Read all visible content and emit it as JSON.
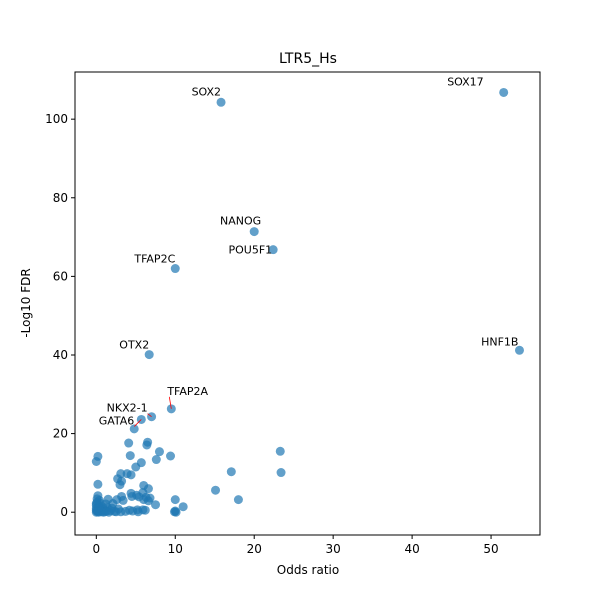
{
  "chart_data": {
    "type": "scatter",
    "title": "LTR5_Hs",
    "xlabel": "Odds ratio",
    "ylabel": "-Log10 FDR",
    "xlim": [
      -2.7,
      56.2
    ],
    "ylim": [
      -5.8,
      112
    ],
    "xticks": [
      "0",
      "10",
      "20",
      "30",
      "40",
      "50"
    ],
    "xtick_values": [
      0,
      10,
      20,
      30,
      40,
      50
    ],
    "yticks": [
      "0",
      "20",
      "40",
      "60",
      "80",
      "100"
    ],
    "ytick_values": [
      0,
      20,
      40,
      60,
      80,
      100
    ],
    "grid": false,
    "marker_color": "#1f77b4",
    "label_line_color": "#ff0000",
    "labeled_points": [
      {
        "label": "SOX17",
        "x": 51.6,
        "y": 106.8
      },
      {
        "label": "SOX2",
        "x": 15.8,
        "y": 104.3
      },
      {
        "label": "NANOG",
        "x": 20.0,
        "y": 71.4
      },
      {
        "label": "POU5F1",
        "x": 22.4,
        "y": 66.8
      },
      {
        "label": "TFAP2C",
        "x": 10.0,
        "y": 62.0
      },
      {
        "label": "HNF1B",
        "x": 53.6,
        "y": 41.2
      },
      {
        "label": "OTX2",
        "x": 6.7,
        "y": 40.1
      },
      {
        "label": "TFAP2A",
        "x": 9.5,
        "y": 26.3
      },
      {
        "label": "NKX2-1",
        "x": 7.0,
        "y": 24.3
      },
      {
        "label": "GATA6",
        "x": 5.7,
        "y": 23.6
      }
    ],
    "points": [
      [
        4.8,
        21.2
      ],
      [
        6.5,
        17.8
      ],
      [
        6.4,
        17.1
      ],
      [
        4.1,
        17.6
      ],
      [
        8.0,
        15.4
      ],
      [
        9.4,
        14.3
      ],
      [
        4.3,
        14.4
      ],
      [
        7.6,
        13.4
      ],
      [
        23.3,
        15.5
      ],
      [
        23.4,
        10.1
      ],
      [
        17.1,
        10.3
      ],
      [
        0.2,
        14.2
      ],
      [
        0.0,
        12.9
      ],
      [
        5.7,
        12.6
      ],
      [
        5.0,
        11.5
      ],
      [
        3.1,
        9.8
      ],
      [
        3.9,
        9.8
      ],
      [
        4.4,
        9.5
      ],
      [
        2.7,
        8.5
      ],
      [
        3.2,
        7.9
      ],
      [
        3.0,
        7.0
      ],
      [
        0.2,
        7.1
      ],
      [
        6.0,
        6.8
      ],
      [
        6.6,
        6.0
      ],
      [
        15.1,
        5.6
      ],
      [
        5.9,
        5.0
      ],
      [
        4.4,
        4.8
      ],
      [
        5.1,
        4.3
      ],
      [
        4.5,
        4.0
      ],
      [
        3.2,
        4.0
      ],
      [
        6.3,
        3.8
      ],
      [
        6.8,
        3.6
      ],
      [
        5.4,
        3.9
      ],
      [
        0.2,
        4.2
      ],
      [
        0.1,
        3.4
      ],
      [
        0.4,
        3.0
      ],
      [
        1.5,
        3.3
      ],
      [
        2.6,
        3.2
      ],
      [
        3.4,
        3.0
      ],
      [
        6.0,
        3.2
      ],
      [
        6.6,
        2.9
      ],
      [
        10.0,
        3.2
      ],
      [
        18.0,
        3.2
      ],
      [
        0.1,
        2.6
      ],
      [
        0.5,
        2.3
      ],
      [
        1.2,
        2.1
      ],
      [
        2.1,
        2.2
      ],
      [
        7.5,
        1.9
      ],
      [
        11.0,
        1.4
      ],
      [
        0.0,
        1.8
      ],
      [
        0.3,
        1.6
      ],
      [
        0.8,
        1.4
      ],
      [
        1.4,
        1.2
      ],
      [
        2.0,
        1.0
      ],
      [
        2.8,
        0.8
      ],
      [
        4.2,
        0.5
      ],
      [
        5.2,
        0.6
      ],
      [
        5.9,
        0.6
      ],
      [
        6.2,
        0.5
      ],
      [
        0.0,
        1.0
      ],
      [
        0.2,
        0.8
      ],
      [
        0.5,
        0.6
      ],
      [
        0.7,
        0.9
      ],
      [
        1.0,
        0.5
      ],
      [
        1.3,
        0.3
      ],
      [
        1.8,
        0.4
      ],
      [
        2.3,
        0.2
      ],
      [
        3.1,
        0.1
      ],
      [
        3.7,
        0.2
      ],
      [
        4.6,
        0.3
      ],
      [
        5.3,
        0.1
      ],
      [
        9.9,
        0.1
      ],
      [
        10.1,
        0.0
      ],
      [
        10.0,
        0.3
      ],
      [
        0.0,
        0.0
      ],
      [
        0.1,
        0.2
      ],
      [
        0.3,
        0.0
      ],
      [
        0.4,
        0.3
      ],
      [
        0.6,
        0.1
      ],
      [
        0.9,
        0.0
      ],
      [
        1.1,
        0.1
      ],
      [
        1.6,
        0.0
      ],
      [
        2.5,
        0.1
      ],
      [
        0.0,
        0.5
      ],
      [
        0.2,
        0.4
      ],
      [
        0.0,
        2.2
      ],
      [
        0.3,
        1.1
      ]
    ]
  }
}
